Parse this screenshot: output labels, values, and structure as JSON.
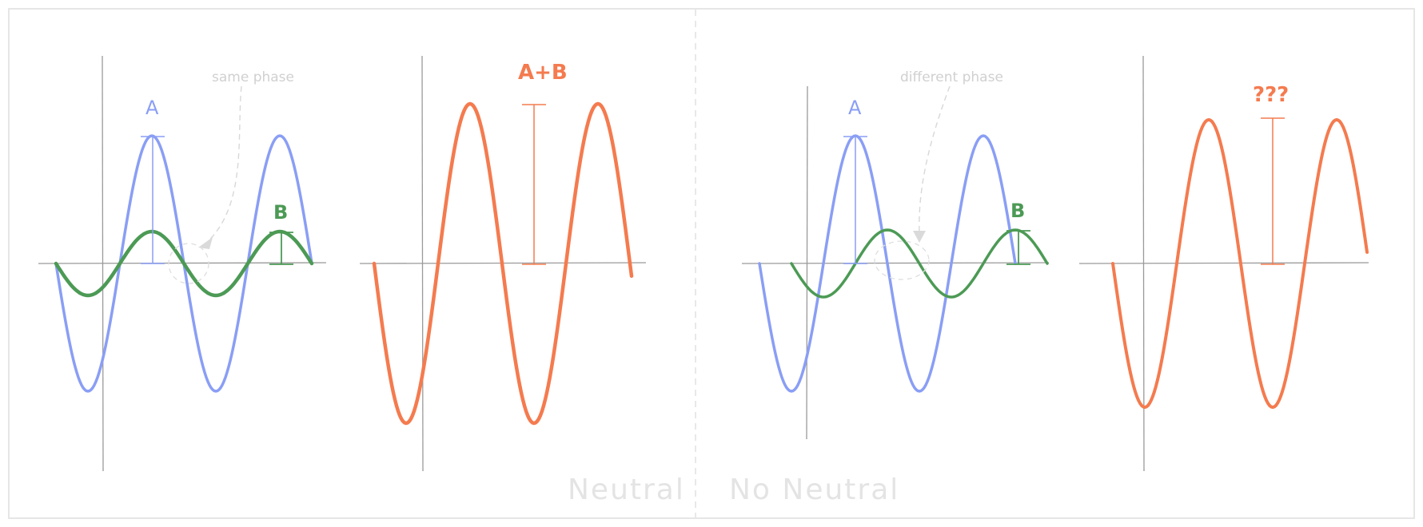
{
  "colors": {
    "wave_a": "#8a9ef5",
    "wave_b": "#4c9a55",
    "wave_sum": "#f47b4f",
    "axis": "#9a9a9a",
    "annotation": "#d0d0d0",
    "frame": "#e6e6e6"
  },
  "left": {
    "wave_a_label": "A",
    "wave_b_label": "B",
    "sum_label": "A+B",
    "phase_note": "same phase",
    "side_label": "Neutral"
  },
  "right": {
    "wave_a_label": "A",
    "wave_b_label": "B",
    "sum_label": "???",
    "phase_note": "different phase",
    "side_label": "No Neutral"
  }
}
